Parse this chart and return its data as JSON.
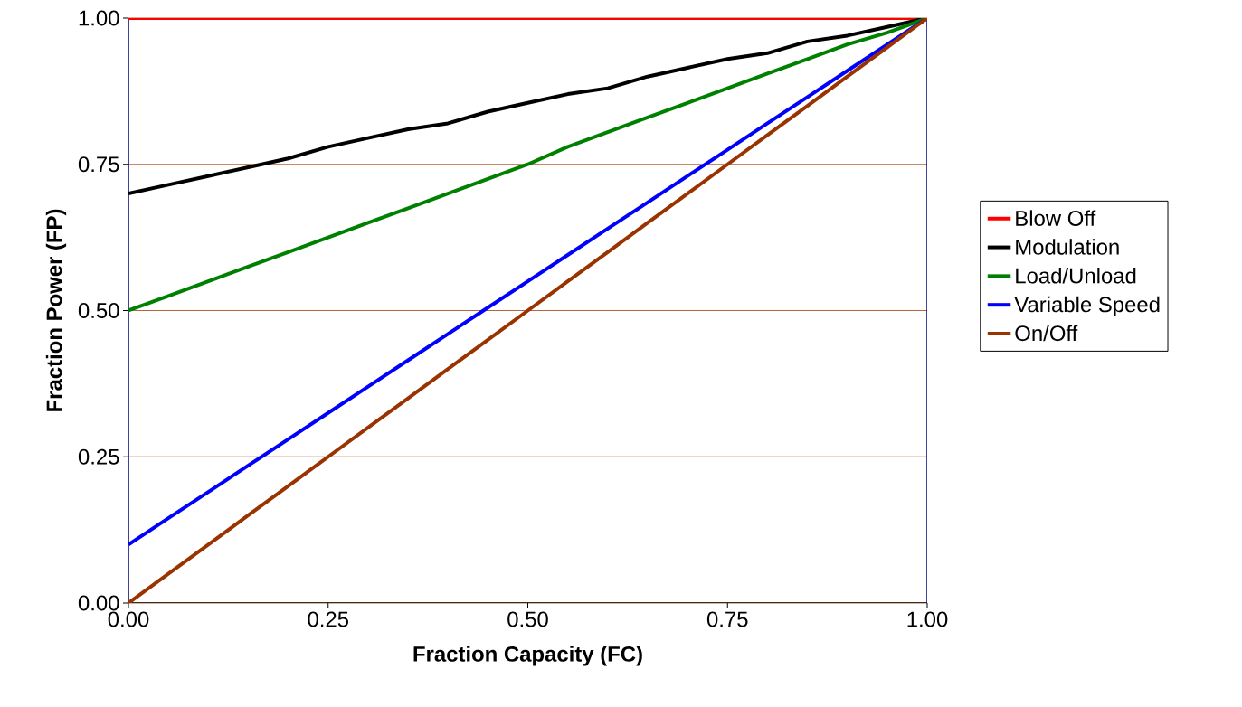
{
  "chart_data": {
    "type": "line",
    "xlabel": "Fraction Capacity (FC)",
    "ylabel": "Fraction Power (FP)",
    "x": [
      0,
      0.05,
      0.1,
      0.15,
      0.2,
      0.25,
      0.3,
      0.35,
      0.4,
      0.45,
      0.5,
      0.55,
      0.6,
      0.65,
      0.7,
      0.75,
      0.8,
      0.85,
      0.9,
      0.95,
      1
    ],
    "series": [
      {
        "name": "Blow Off",
        "color": "#ff0000",
        "values": [
          1,
          1,
          1,
          1,
          1,
          1,
          1,
          1,
          1,
          1,
          1,
          1,
          1,
          1,
          1,
          1,
          1,
          1,
          1,
          1,
          1
        ]
      },
      {
        "name": "Modulation",
        "color": "#000000",
        "values": [
          0.7,
          0.715,
          0.73,
          0.745,
          0.76,
          0.78,
          0.795,
          0.81,
          0.82,
          0.84,
          0.855,
          0.87,
          0.88,
          0.9,
          0.915,
          0.93,
          0.94,
          0.96,
          0.97,
          0.985,
          1
        ]
      },
      {
        "name": "Load/Unload",
        "color": "#008000",
        "values": [
          0.5,
          0.525,
          0.55,
          0.575,
          0.6,
          0.625,
          0.65,
          0.675,
          0.7,
          0.725,
          0.75,
          0.78,
          0.805,
          0.83,
          0.855,
          0.88,
          0.905,
          0.93,
          0.955,
          0.975,
          1
        ]
      },
      {
        "name": "Variable Speed",
        "color": "#0000ff",
        "values": [
          0.1,
          0.145,
          0.19,
          0.235,
          0.28,
          0.325,
          0.37,
          0.415,
          0.46,
          0.505,
          0.55,
          0.595,
          0.64,
          0.685,
          0.73,
          0.775,
          0.82,
          0.865,
          0.91,
          0.955,
          1
        ]
      },
      {
        "name": "On/Off",
        "color": "#993300",
        "values": [
          0,
          0.05,
          0.1,
          0.15,
          0.2,
          0.25,
          0.3,
          0.35,
          0.4,
          0.45,
          0.5,
          0.55,
          0.6,
          0.65,
          0.7,
          0.75,
          0.8,
          0.85,
          0.9,
          0.95,
          1
        ]
      }
    ],
    "xlim": [
      0,
      1
    ],
    "ylim": [
      0,
      1
    ],
    "xticks": [
      {
        "value": 0,
        "label": "0.00"
      },
      {
        "value": 0.25,
        "label": "0.25"
      },
      {
        "value": 0.5,
        "label": "0.50"
      },
      {
        "value": 0.75,
        "label": "0.75"
      },
      {
        "value": 1,
        "label": "1.00"
      }
    ],
    "yticks": [
      {
        "value": 0,
        "label": "0.00"
      },
      {
        "value": 0.25,
        "label": "0.25"
      },
      {
        "value": 0.5,
        "label": "0.50"
      },
      {
        "value": 0.75,
        "label": "0.75"
      },
      {
        "value": 1,
        "label": "1.00"
      }
    ],
    "grid": "y",
    "legend": "right",
    "marker": "none",
    "line_style": "solid"
  }
}
